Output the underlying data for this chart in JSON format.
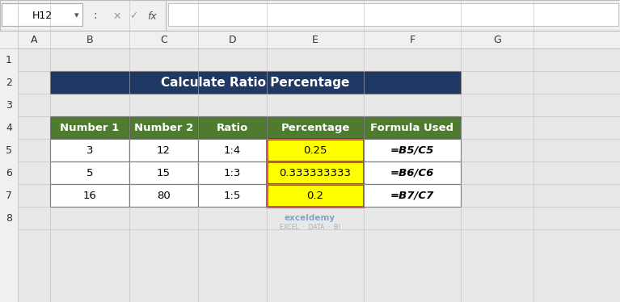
{
  "title": "Calculate Ratio Percentage",
  "title_bg": "#1F3864",
  "title_fg": "#FFFFFF",
  "header_bg": "#4E7B2F",
  "header_fg": "#FFFFFF",
  "cell_bg": "#FFFFFF",
  "cell_fg": "#000000",
  "highlight_bg": "#FFFF00",
  "highlight_border": "#FF0000",
  "toolbar_bg": "#F0F0F0",
  "col_labels": [
    "A",
    "B",
    "C",
    "D",
    "E",
    "F",
    "G"
  ],
  "row_labels": [
    "1",
    "2",
    "3",
    "4",
    "5",
    "6",
    "7",
    "8"
  ],
  "headers": [
    "Number 1",
    "Number 2",
    "Ratio",
    "Percentage",
    "Formula Used"
  ],
  "data": [
    [
      "3",
      "12",
      "1:4",
      "0.25",
      "=B5/C5"
    ],
    [
      "5",
      "15",
      "1:3",
      "0.333333333",
      "=B6/C6"
    ],
    [
      "16",
      "80",
      "1:5",
      "0.2",
      "=B7/C7"
    ]
  ],
  "cell_ref": "H12",
  "fig_width": 7.67,
  "fig_height": 3.74
}
